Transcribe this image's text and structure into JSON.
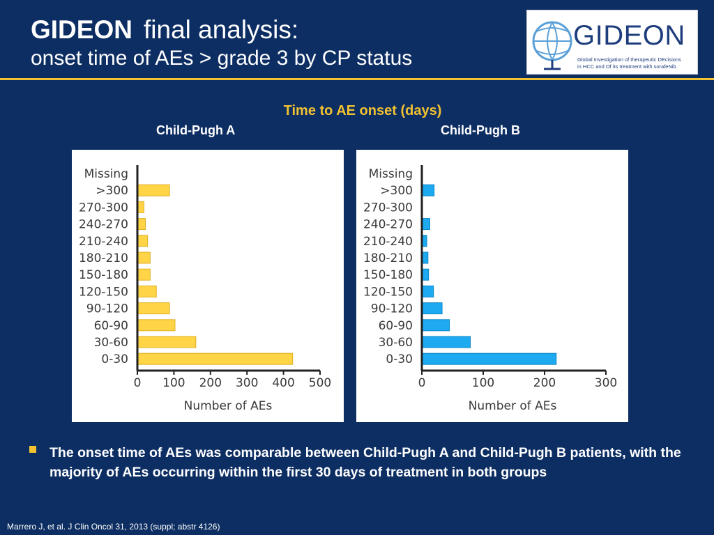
{
  "header": {
    "title_bold": "GIDEON",
    "title_rest": "final analysis:",
    "subtitle": "onset time of AEs > grade 3  by CP status"
  },
  "logo": {
    "name": "GIDEON",
    "tagline_line1": "Global Investigation of therapeutic DEcisions",
    "tagline_line2": "in HCC and Of its treatment with sorafeNib"
  },
  "chart_heading": "Time to AE onset (days)",
  "chart_data": [
    {
      "type": "bar",
      "orientation": "horizontal",
      "title": "Child-Pugh A",
      "xlabel": "Number of AEs",
      "ylabel": "",
      "categories": [
        "Missing",
        ">300",
        "270-300",
        "240-270",
        "210-240",
        "180-210",
        "150-180",
        "120-150",
        "90-120",
        "60-90",
        "30-60",
        "0-30"
      ],
      "values": [
        0,
        88,
        18,
        22,
        28,
        35,
        35,
        52,
        88,
        103,
        160,
        425
      ],
      "xlim": [
        0,
        500
      ],
      "xticks": [
        "0",
        "100",
        "200",
        "300",
        "400",
        "500"
      ],
      "bar_color": "#ffd447",
      "bar_edge": "#e0b020"
    },
    {
      "type": "bar",
      "orientation": "horizontal",
      "title": "Child-Pugh B",
      "xlabel": "Number of AEs",
      "ylabel": "",
      "categories": [
        "Missing",
        ">300",
        "270-300",
        "240-270",
        "210-240",
        "180-210",
        "150-180",
        "120-150",
        "90-120",
        "60-90",
        "30-60",
        "0-30"
      ],
      "values": [
        0,
        20,
        0,
        13,
        8,
        10,
        11,
        19,
        33,
        45,
        79,
        219
      ],
      "xlim": [
        0,
        300
      ],
      "xticks": [
        "0",
        "100",
        "200",
        "300"
      ],
      "bar_color": "#1eaaf1",
      "bar_edge": "#0a86c8"
    }
  ],
  "bullet": "The onset time of AEs was comparable between Child-Pugh A and Child-Pugh B patients, with the majority of AEs occurring within the first 30 days of treatment in both groups",
  "citation": "Marrero J, et al. J Clin Oncol 31, 2013 (suppl; abstr 4126)"
}
